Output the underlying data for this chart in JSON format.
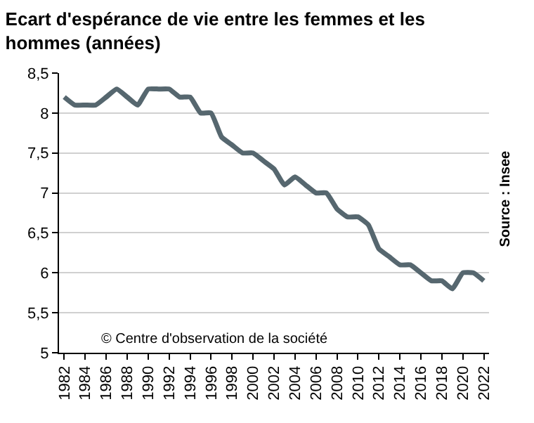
{
  "chart_data": {
    "type": "line",
    "title": "Ecart d'espérance de vie entre les femmes et les hommes (années)",
    "x": [
      1982,
      1983,
      1984,
      1985,
      1986,
      1987,
      1988,
      1989,
      1990,
      1991,
      1992,
      1993,
      1994,
      1995,
      1996,
      1997,
      1998,
      1999,
      2000,
      2001,
      2002,
      2003,
      2004,
      2005,
      2006,
      2007,
      2008,
      2009,
      2010,
      2011,
      2012,
      2013,
      2014,
      2015,
      2016,
      2017,
      2018,
      2019,
      2020,
      2021,
      2022
    ],
    "series": [
      {
        "color": "#56676f",
        "values": [
          8.2,
          8.1,
          8.1,
          8.1,
          8.2,
          8.3,
          8.2,
          8.1,
          8.3,
          8.3,
          8.3,
          8.2,
          8.2,
          8.0,
          8.0,
          7.7,
          7.6,
          7.5,
          7.5,
          7.4,
          7.3,
          7.1,
          7.2,
          7.1,
          7.0,
          7.0,
          6.8,
          6.7,
          6.7,
          6.6,
          6.3,
          6.2,
          6.1,
          6.1,
          6.0,
          5.9,
          5.9,
          5.8,
          6.0,
          6.0,
          5.9
        ]
      }
    ],
    "xlim": [
      1981.5,
      2022.5
    ],
    "xticks": [
      1982,
      1984,
      1986,
      1988,
      1990,
      1992,
      1994,
      1996,
      1998,
      2000,
      2002,
      2004,
      2006,
      2008,
      2010,
      2012,
      2014,
      2016,
      2018,
      2020,
      2022
    ],
    "ylim": [
      5,
      8.5
    ],
    "yticks": [
      {
        "value": 5,
        "label": "5"
      },
      {
        "value": 5.5,
        "label": "5,5"
      },
      {
        "value": 6,
        "label": "6"
      },
      {
        "value": 6.5,
        "label": "6,5"
      },
      {
        "value": 7,
        "label": "7"
      },
      {
        "value": 7.5,
        "label": "7,5"
      },
      {
        "value": 8,
        "label": "8"
      },
      {
        "value": 8.5,
        "label": "8,5"
      }
    ],
    "grid": "y",
    "marker": "none",
    "line_style": "solid",
    "annotations": [
      "© Centre d'observation de la société",
      "Source : Insee"
    ]
  }
}
